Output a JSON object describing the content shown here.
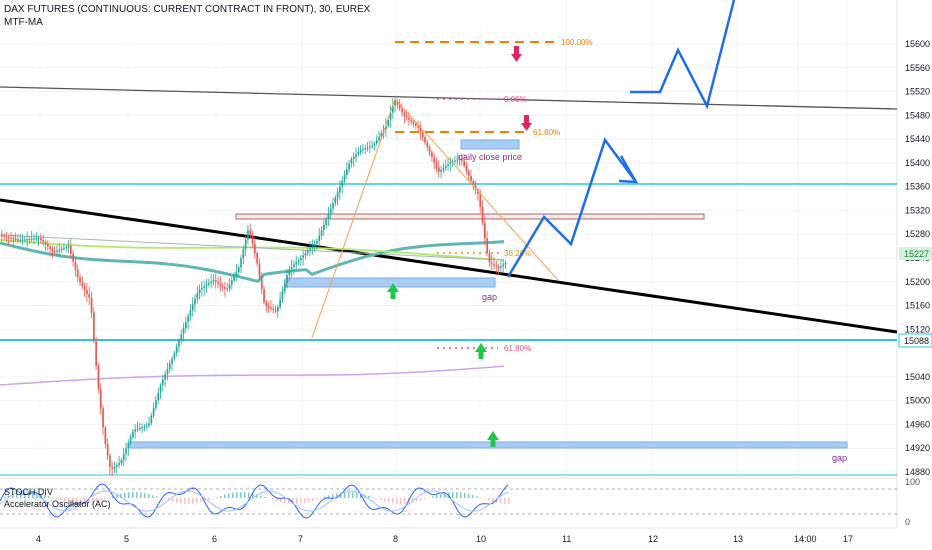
{
  "header": {
    "title": "DAX FUTURES (CONTINUOUS: CURRENT CONTRACT IN FRONT), 30, EUREX",
    "indicator": "MTF-MA"
  },
  "oscillator": {
    "label_1": "STOCH DIV",
    "label_2": "Accelerator Oscillator (AC)",
    "ticks": [
      "100",
      "0"
    ]
  },
  "chart_data": {
    "type": "candlestick",
    "y_range": [
      14860,
      15640
    ],
    "price_ticks": [
      15600,
      15560,
      15520,
      15480,
      15440,
      15400,
      15360,
      15320,
      15280,
      15240,
      15200,
      15160,
      15120,
      15040,
      15000,
      14960,
      14920,
      14880
    ],
    "current_price": "15227",
    "marked_level": "15088",
    "x_ticks": [
      "4",
      "5",
      "6",
      "7",
      "8",
      "10",
      "11",
      "12",
      "13",
      "14",
      "14:00",
      "17"
    ],
    "fib_labels": [
      "100.00%",
      "0.00%",
      "61.80%",
      "38.20%",
      "61.80%"
    ],
    "annotations": [
      "daily close price",
      "gap",
      "gap"
    ],
    "colors": {
      "up_candle": "#26a69a",
      "down_candle": "#ef5350",
      "trendline": "#000000",
      "cyan_levels": "#2ec7d4",
      "forecast": "#1e6ee6",
      "fib": "#f57c00",
      "zones": "#90c0ee",
      "arrow_up": "#1fc74a",
      "arrow_down": "#e0265a"
    }
  }
}
